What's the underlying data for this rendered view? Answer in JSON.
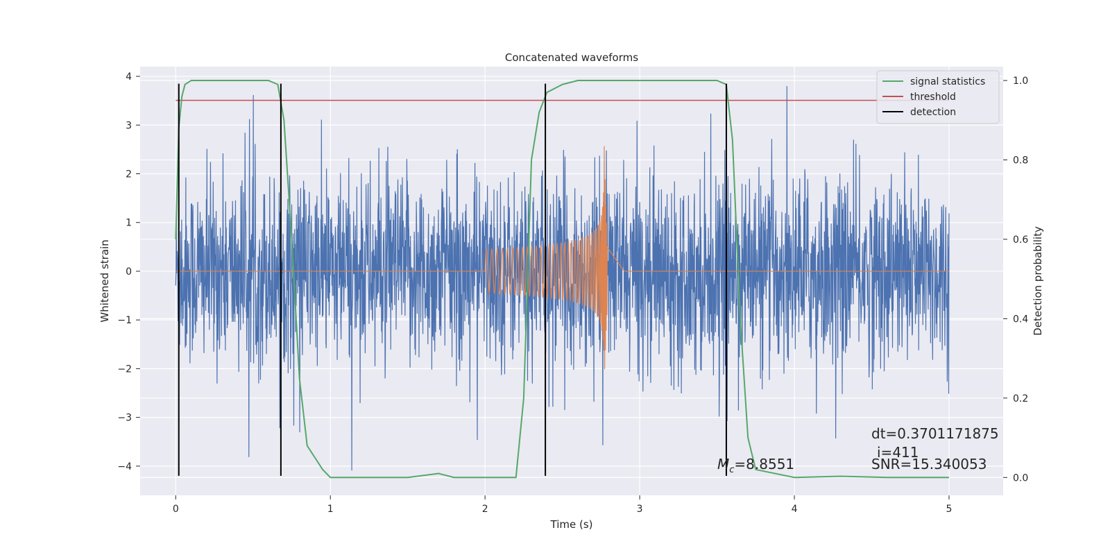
{
  "chart_data": {
    "type": "line",
    "title": "Concatenated waveforms",
    "xlabel": "Time (s)",
    "ylabel": "Whitened strain",
    "y2label": "Detection probability",
    "xlim": [
      -0.23,
      5.35
    ],
    "ylim": [
      -4.6,
      4.2
    ],
    "y2lim": [
      -0.045,
      1.035
    ],
    "xticks": [
      0,
      1,
      2,
      3,
      4,
      5
    ],
    "yticks": [
      -4,
      -3,
      -2,
      -1,
      0,
      1,
      2,
      3,
      4
    ],
    "y2ticks": [
      0.0,
      0.2,
      0.4,
      0.6,
      0.8,
      1.0
    ],
    "grid": true,
    "legend_position": "top-right",
    "colors": {
      "background": "#EAEAF2",
      "noise": "#4C72B0",
      "template": "#DD8452",
      "signal_statistics": "#55A868",
      "threshold": "#C44E52",
      "detection": "#000000"
    },
    "series": [
      {
        "name": "signal statistics",
        "axis": "right",
        "x": [
          0.0,
          0.02,
          0.04,
          0.06,
          0.1,
          0.2,
          0.4,
          0.6,
          0.66,
          0.7,
          0.75,
          0.8,
          0.85,
          0.9,
          0.95,
          1.0,
          1.2,
          1.5,
          1.7,
          1.8,
          2.0,
          2.2,
          2.25,
          2.3,
          2.35,
          2.4,
          2.5,
          2.6,
          3.0,
          3.5,
          3.56,
          3.6,
          3.65,
          3.7,
          3.75,
          4.0,
          4.3,
          4.6,
          5.0
        ],
        "y": [
          0.6,
          0.88,
          0.96,
          0.99,
          1.0,
          1.0,
          1.0,
          1.0,
          0.99,
          0.9,
          0.6,
          0.25,
          0.08,
          0.05,
          0.02,
          0.0,
          0.0,
          0.0,
          0.01,
          0.0,
          0.0,
          0.0,
          0.2,
          0.8,
          0.92,
          0.97,
          0.99,
          1.0,
          1.0,
          1.0,
          0.99,
          0.85,
          0.4,
          0.1,
          0.02,
          0.0,
          0.003,
          0.0,
          0.0
        ]
      },
      {
        "name": "threshold",
        "axis": "right",
        "x": [
          0.0,
          5.0
        ],
        "y": [
          0.95,
          0.95
        ]
      },
      {
        "name": "detection",
        "axis": "left",
        "x": [
          0.02,
          0.68,
          2.39,
          3.56
        ],
        "y_range": [
          -4.2,
          3.85
        ]
      },
      {
        "name": "",
        "axis": "left",
        "kind": "whitened_noise",
        "x_range": [
          0.0,
          5.0
        ],
        "typical_peak_amplitude": 2.2,
        "max": 3.8,
        "min": -4.3
      },
      {
        "name": "",
        "axis": "left",
        "kind": "chirp_template",
        "x_range": [
          2.0,
          2.9
        ],
        "peak_time": 2.77,
        "peak_max": 2.7,
        "peak_min": -2.0,
        "start_amplitude": 0.45
      }
    ],
    "annotations": {
      "mc": "=8.8551",
      "mc_symbol": "M",
      "mc_subscript": "c",
      "dt": "dt=0.3701171875",
      "i": "i=411",
      "snr": "SNR=15.340053"
    }
  }
}
